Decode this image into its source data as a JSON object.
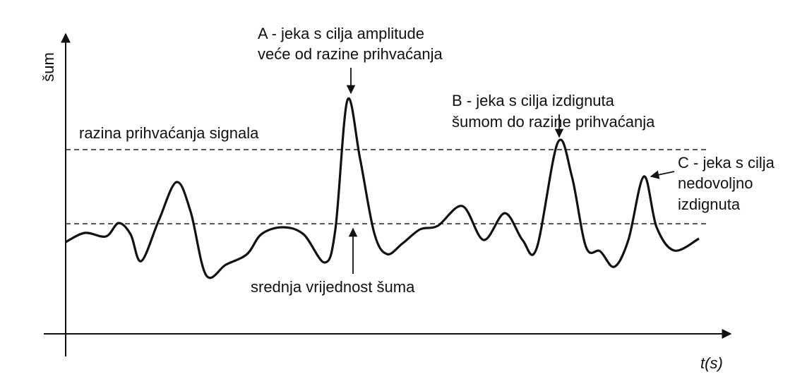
{
  "y_axis_label": "šum",
  "x_axis_label": "t(s)",
  "threshold_label": "razina prihvaćanja signala",
  "mean_label": "srednja vrijednost šuma",
  "annotations": [
    {
      "lines": [
        "A - jeka s cilja amplitude",
        "veće od razine prihvaćanja"
      ]
    },
    {
      "lines": [
        "B - jeka s cilja izdignuta",
        "šumom do razine prihvaćanja"
      ]
    },
    {
      "lines": [
        "C - jeka s cilja",
        "nedovoljno",
        "izdignuta"
      ]
    }
  ]
}
